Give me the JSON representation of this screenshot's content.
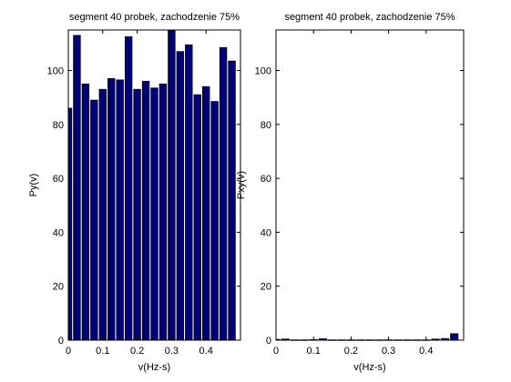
{
  "chart_data": [
    {
      "type": "bar",
      "title": "segment 40 probek, zachodzenie 75%",
      "xlabel": "v(Hz-s)",
      "ylabel": "Py(v)",
      "xlim": [
        0,
        0.5
      ],
      "ylim": [
        0,
        115
      ],
      "xticks": [
        "0",
        "0.1",
        "0.2",
        "0.3",
        "0.4"
      ],
      "yticks": [
        "0",
        "20",
        "40",
        "60",
        "80",
        "100"
      ],
      "bar_width": 0.02,
      "x": [
        0.0,
        0.025,
        0.05,
        0.075,
        0.1,
        0.125,
        0.15,
        0.175,
        0.2,
        0.225,
        0.25,
        0.275,
        0.3,
        0.325,
        0.35,
        0.375,
        0.4,
        0.425,
        0.45,
        0.475
      ],
      "values": [
        86,
        113,
        95,
        89,
        93,
        97,
        96.5,
        112.5,
        93,
        96,
        93.5,
        95,
        115.5,
        107,
        109.5,
        91,
        94,
        88.5,
        108.5,
        103.5
      ],
      "bar_color": "#00007f",
      "grid": false
    },
    {
      "type": "bar",
      "title": "segment 40 probek, zachodzenie 75%",
      "xlabel": "v(Hz-s)",
      "ylabel": "Pxy(v)",
      "xlim": [
        0,
        0.5
      ],
      "ylim": [
        0,
        115
      ],
      "xticks": [
        "0",
        "0.1",
        "0.2",
        "0.3",
        "0.4"
      ],
      "yticks": [
        "0",
        "20",
        "40",
        "60",
        "80",
        "100"
      ],
      "bar_width": 0.02,
      "x": [
        0.0,
        0.025,
        0.05,
        0.075,
        0.1,
        0.125,
        0.15,
        0.175,
        0.2,
        0.225,
        0.25,
        0.275,
        0.3,
        0.325,
        0.35,
        0.375,
        0.4,
        0.425,
        0.45,
        0.475
      ],
      "values": [
        0.3,
        0.4,
        0.1,
        0.1,
        0.2,
        0.5,
        0.1,
        0.1,
        0.1,
        0.1,
        0.1,
        0.1,
        0.1,
        0.1,
        0.1,
        0.1,
        0.1,
        0.4,
        0.6,
        2.4
      ],
      "bar_color": "#00007f",
      "grid": false
    }
  ]
}
